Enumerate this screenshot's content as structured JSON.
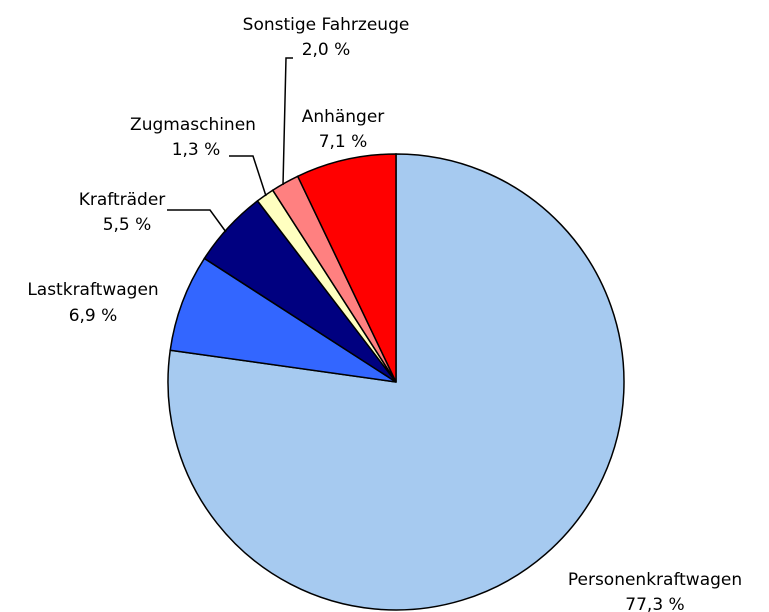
{
  "chart_data": {
    "type": "pie",
    "categories": [
      "Personenkraftwagen",
      "Lastkraftwagen",
      "Krafträder",
      "Zugmaschinen",
      "Sonstige Fahrzeuge",
      "Anhänger"
    ],
    "values": [
      77.3,
      6.9,
      5.5,
      1.3,
      2.0,
      7.1
    ],
    "value_labels": [
      "77,3 %",
      "6,9 %",
      "5,5 %",
      "1,3 %",
      "2,0 %",
      "7,1 %"
    ],
    "colors": [
      "#a6caf0",
      "#3366ff",
      "#000080",
      "#ffffc0",
      "#ff8080",
      "#ff0000"
    ]
  }
}
